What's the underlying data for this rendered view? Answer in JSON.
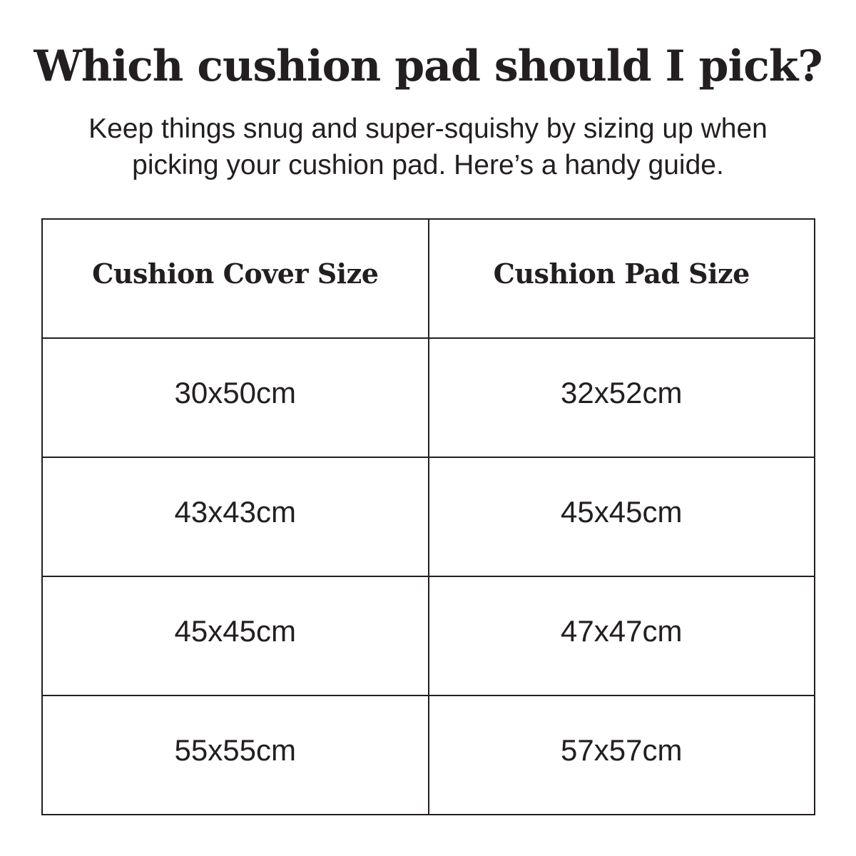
{
  "page": {
    "title": "Which cushion pad should I pick?",
    "subtitle": "Keep things snug and super-squishy by sizing up when picking your cushion pad. Here’s a handy guide."
  },
  "table": {
    "columns": [
      "Cushion Cover Size",
      "Cushion Pad Size"
    ],
    "rows": [
      [
        "30x50cm",
        "32x52cm"
      ],
      [
        "43x43cm",
        "45x45cm"
      ],
      [
        "45x45cm",
        "47x47cm"
      ],
      [
        "55x55cm",
        "57x57cm"
      ]
    ]
  },
  "colors": {
    "text": "#231f20",
    "border": "#231f20",
    "background": "#ffffff"
  }
}
